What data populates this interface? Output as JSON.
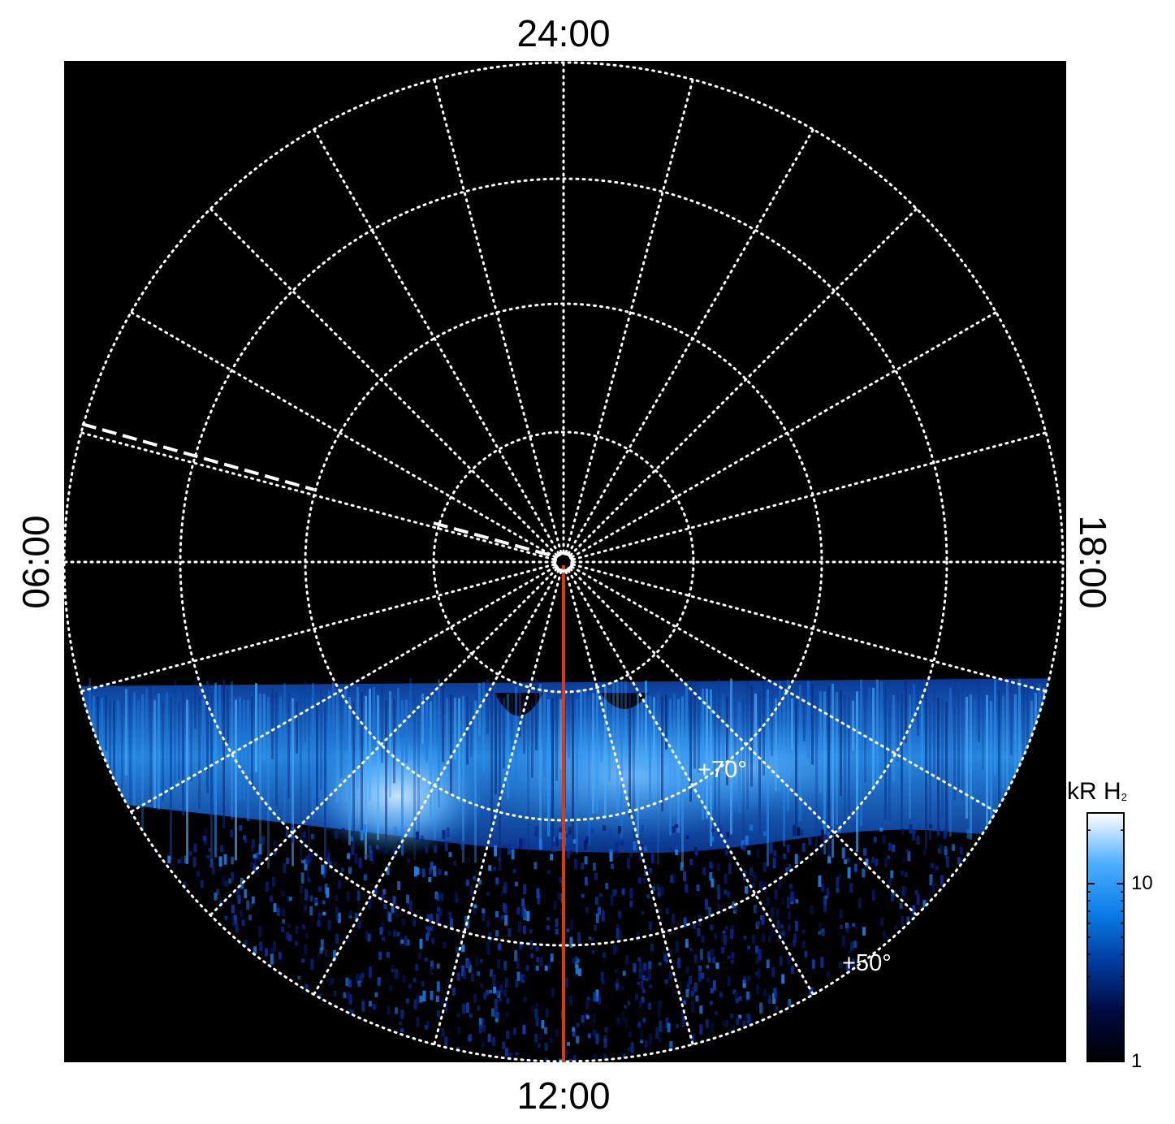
{
  "lt_labels": {
    "top": "24:00",
    "bottom": "12:00",
    "left": "06:00",
    "right": "18:00"
  },
  "latitude_labels": {
    "inner": "+70°",
    "outer": "+50°"
  },
  "colorbar": {
    "title": "kR H",
    "title_subscript": "2",
    "scale": "log",
    "range": [
      1,
      25
    ],
    "ticks": [
      {
        "value": 1,
        "label": "1"
      },
      {
        "value": 10,
        "label": "10"
      }
    ],
    "colors": [
      "#000000",
      "#000a40",
      "#003a9e",
      "#0a7ee8",
      "#4fb0ff",
      "#ffffff"
    ]
  },
  "colors": {
    "background": "#000000",
    "grid": "#ffffff",
    "meridian": "#d83a12",
    "aurora": "#1e8ef0"
  },
  "grid": {
    "style": "dotted",
    "latitude_spacing_deg": 10,
    "local_time_spacing_h": 1
  }
}
